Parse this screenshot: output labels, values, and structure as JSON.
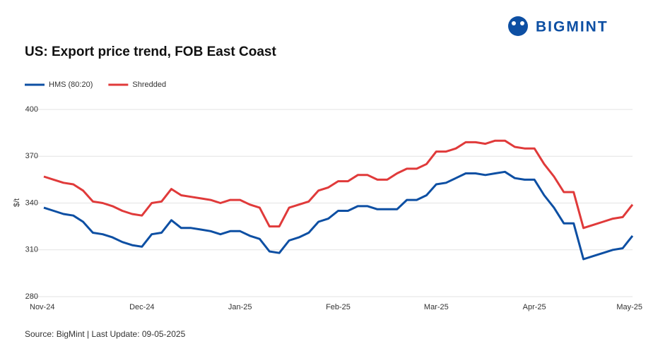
{
  "brand": "BIGMINT",
  "chart_data": {
    "type": "line",
    "title": "US: Export price trend, FOB East Coast",
    "y_label": "$/t",
    "source": "Source: BigMint | Last Update: 09-05-2025",
    "categories": [
      "Nov-24",
      null,
      null,
      null,
      null,
      null,
      null,
      null,
      null,
      null,
      "Dec-24",
      null,
      null,
      null,
      null,
      null,
      null,
      null,
      null,
      null,
      "Jan-25",
      null,
      null,
      null,
      null,
      null,
      null,
      null,
      null,
      null,
      "Feb-25",
      null,
      null,
      null,
      null,
      null,
      null,
      null,
      null,
      null,
      "Mar-25",
      null,
      null,
      null,
      null,
      null,
      null,
      null,
      null,
      null,
      "Apr-25",
      null,
      null,
      null,
      null,
      null,
      null,
      null,
      null,
      null,
      "May-25"
    ],
    "series": [
      {
        "name": "HMS (80:20)",
        "color": "#0d4fa3",
        "values": [
          337,
          335,
          333,
          332,
          328,
          321,
          320,
          318,
          315,
          313,
          312,
          320,
          321,
          329,
          324,
          324,
          323,
          322,
          320,
          322,
          322,
          319,
          317,
          309,
          308,
          316,
          318,
          321,
          328,
          330,
          335,
          335,
          338,
          338,
          336,
          336,
          336,
          342,
          342,
          345,
          352,
          353,
          356,
          359,
          359,
          358,
          359,
          360,
          356,
          355,
          355,
          345,
          337,
          327,
          327,
          304,
          306,
          308,
          310,
          311,
          319
        ]
      },
      {
        "name": "Shredded",
        "color": "#e03a3a",
        "values": [
          357,
          355,
          353,
          352,
          348,
          341,
          340,
          338,
          335,
          333,
          332,
          340,
          341,
          349,
          345,
          344,
          343,
          342,
          340,
          342,
          342,
          339,
          337,
          325,
          325,
          337,
          339,
          341,
          348,
          350,
          354,
          354,
          358,
          358,
          355,
          355,
          359,
          362,
          362,
          365,
          373,
          373,
          375,
          379,
          379,
          378,
          380,
          380,
          376,
          375,
          375,
          365,
          357,
          347,
          347,
          324,
          326,
          328,
          330,
          331,
          339
        ]
      }
    ],
    "ylim": [
      280,
      400
    ],
    "yticks": [
      280,
      310,
      340,
      370,
      400
    ],
    "grid": true,
    "legend": "top-left"
  }
}
